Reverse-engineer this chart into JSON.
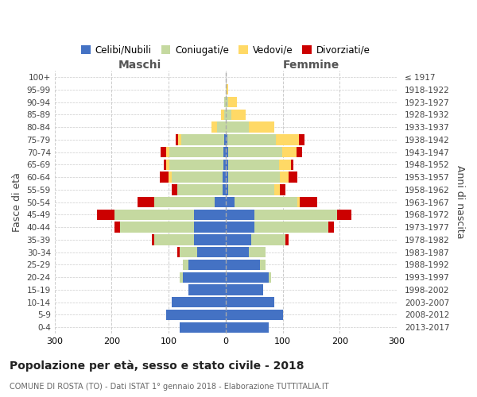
{
  "age_groups": [
    "0-4",
    "5-9",
    "10-14",
    "15-19",
    "20-24",
    "25-29",
    "30-34",
    "35-39",
    "40-44",
    "45-49",
    "50-54",
    "55-59",
    "60-64",
    "65-69",
    "70-74",
    "75-79",
    "80-84",
    "85-89",
    "90-94",
    "95-99",
    "100+"
  ],
  "birth_years": [
    "2013-2017",
    "2008-2012",
    "2003-2007",
    "1998-2002",
    "1993-1997",
    "1988-1992",
    "1983-1987",
    "1978-1982",
    "1973-1977",
    "1968-1972",
    "1963-1967",
    "1958-1962",
    "1953-1957",
    "1948-1952",
    "1943-1947",
    "1938-1942",
    "1933-1937",
    "1928-1932",
    "1923-1927",
    "1918-1922",
    "≤ 1917"
  ],
  "maschi": {
    "celibi": [
      80,
      105,
      95,
      65,
      75,
      65,
      50,
      55,
      55,
      55,
      20,
      5,
      5,
      4,
      4,
      3,
      0,
      0,
      0,
      0,
      0
    ],
    "coniugati": [
      0,
      0,
      0,
      0,
      5,
      10,
      30,
      70,
      130,
      140,
      105,
      80,
      90,
      95,
      95,
      75,
      15,
      3,
      2,
      0,
      0
    ],
    "vedovi": [
      0,
      0,
      0,
      0,
      0,
      0,
      0,
      0,
      0,
      0,
      0,
      0,
      5,
      5,
      5,
      5,
      10,
      5,
      0,
      0,
      0
    ],
    "divorziati": [
      0,
      0,
      0,
      0,
      0,
      0,
      5,
      5,
      10,
      30,
      30,
      10,
      15,
      5,
      10,
      5,
      0,
      0,
      0,
      0,
      0
    ]
  },
  "femmine": {
    "nubili": [
      75,
      100,
      85,
      65,
      75,
      60,
      40,
      45,
      50,
      50,
      15,
      5,
      5,
      4,
      4,
      3,
      0,
      0,
      0,
      0,
      0
    ],
    "coniugate": [
      0,
      0,
      0,
      0,
      5,
      10,
      30,
      60,
      130,
      145,
      110,
      80,
      90,
      90,
      95,
      85,
      40,
      10,
      5,
      2,
      0
    ],
    "vedove": [
      0,
      0,
      0,
      0,
      0,
      0,
      0,
      0,
      0,
      0,
      5,
      10,
      15,
      20,
      25,
      40,
      45,
      25,
      15,
      3,
      0
    ],
    "divorziate": [
      0,
      0,
      0,
      0,
      0,
      0,
      0,
      5,
      10,
      25,
      30,
      10,
      15,
      5,
      10,
      10,
      0,
      0,
      0,
      0,
      0
    ]
  },
  "colors": {
    "celibi": "#4472c4",
    "coniugati": "#c5d9a0",
    "vedovi": "#ffd966",
    "divorziati": "#cc0000"
  },
  "legend_labels": [
    "Celibi/Nubili",
    "Coniugati/e",
    "Vedovi/e",
    "Divorziati/e"
  ],
  "xlim": 300,
  "title": "Popolazione per età, sesso e stato civile - 2018",
  "subtitle": "COMUNE DI ROSTA (TO) - Dati ISTAT 1° gennaio 2018 - Elaborazione TUTTITALIA.IT",
  "ylabel_left": "Fasce di età",
  "ylabel_right": "Anni di nascita",
  "xlabel_maschi": "Maschi",
  "xlabel_femmine": "Femmine"
}
